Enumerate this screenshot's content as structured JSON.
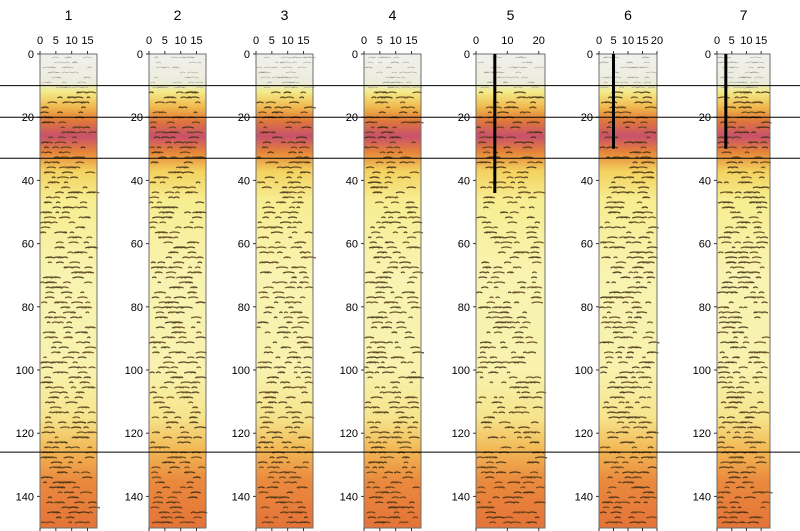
{
  "panels": [
    {
      "label": "1",
      "x_ticks": [
        "0",
        "5",
        "10",
        "15"
      ],
      "x_max": 18,
      "marker_depth": null
    },
    {
      "label": "2",
      "x_ticks": [
        "0",
        "5",
        "10",
        "15"
      ],
      "x_max": 18,
      "marker_depth": null
    },
    {
      "label": "3",
      "x_ticks": [
        "0",
        "5",
        "10",
        "15"
      ],
      "x_max": 18,
      "marker_depth": null
    },
    {
      "label": "4",
      "x_ticks": [
        "0",
        "5",
        "10",
        "15"
      ],
      "x_max": 18,
      "marker_depth": null
    },
    {
      "label": "5",
      "x_ticks": [
        "0",
        "10",
        "20"
      ],
      "x_max": 22,
      "marker_x": 6,
      "marker_depth": 44
    },
    {
      "label": "6",
      "x_ticks": [
        "0",
        "5",
        "10",
        "15",
        "20"
      ],
      "x_max": 20,
      "marker_x": 5,
      "marker_depth": 30
    },
    {
      "label": "7",
      "x_ticks": [
        "0",
        "5",
        "10",
        "15"
      ],
      "x_max": 18,
      "marker_x": 3,
      "marker_depth": 30
    }
  ],
  "y_ticks": [
    "0",
    "20",
    "40",
    "60",
    "80",
    "100",
    "120",
    "140"
  ],
  "y_range": [
    0,
    150
  ],
  "horizontal_lines_depth": [
    10,
    20,
    33,
    126
  ],
  "depth_profile": [
    {
      "d": 0,
      "color": "#f1f1ec"
    },
    {
      "d": 9,
      "color": "#ececdc"
    },
    {
      "d": 12,
      "color": "#f3eb88"
    },
    {
      "d": 17,
      "color": "#f0b64c"
    },
    {
      "d": 21,
      "color": "#e07a3a"
    },
    {
      "d": 26,
      "color": "#c9506d"
    },
    {
      "d": 31,
      "color": "#e58438"
    },
    {
      "d": 37,
      "color": "#f3d15f"
    },
    {
      "d": 46,
      "color": "#f7ed90"
    },
    {
      "d": 70,
      "color": "#f9f3b1"
    },
    {
      "d": 100,
      "color": "#f8f2ae"
    },
    {
      "d": 115,
      "color": "#f6e48c"
    },
    {
      "d": 125,
      "color": "#f2b956"
    },
    {
      "d": 135,
      "color": "#ea8a3e"
    },
    {
      "d": 150,
      "color": "#e47338"
    }
  ]
}
